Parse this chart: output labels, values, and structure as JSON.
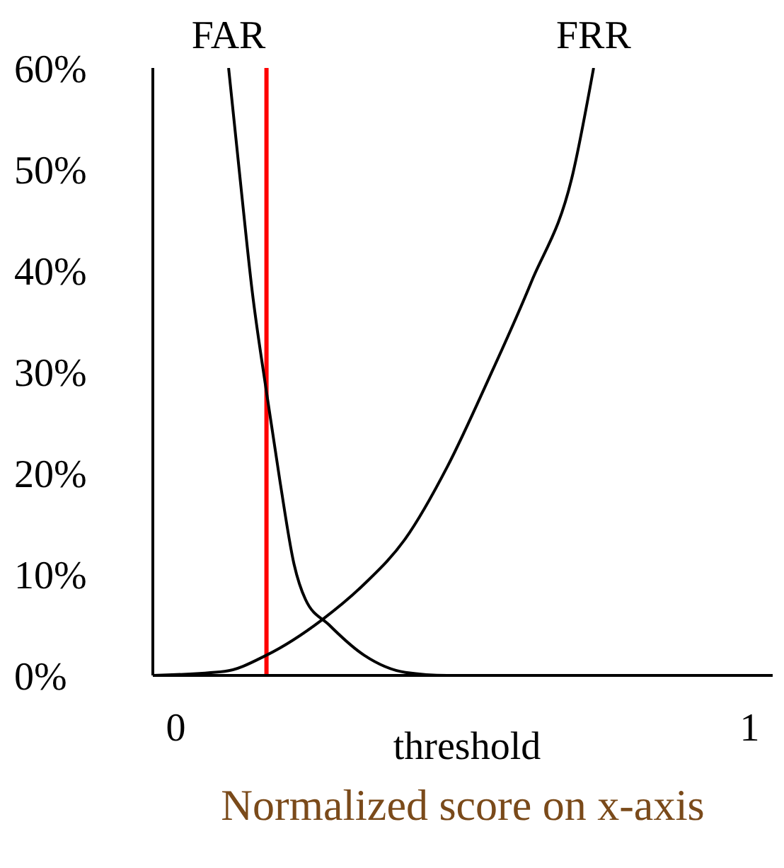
{
  "chart_data": {
    "type": "line",
    "xlabel": "Normalized score on x-axis",
    "annotations": [
      "threshold"
    ],
    "xlim": [
      -0.04,
      1.04
    ],
    "xticks": [
      0,
      1
    ],
    "ylim": [
      0,
      60
    ],
    "yticks": [
      {
        "value": 0,
        "label": "0%"
      },
      {
        "value": 10,
        "label": "10%"
      },
      {
        "value": 20,
        "label": "20%"
      },
      {
        "value": 30,
        "label": "30%"
      },
      {
        "value": 40,
        "label": "40%"
      },
      {
        "value": 50,
        "label": "50%"
      },
      {
        "value": 60,
        "label": "60%"
      }
    ],
    "series": [
      {
        "name": "FAR",
        "color": "#000000",
        "x": [
          0.092,
          0.114,
          0.133,
          0.158,
          0.182,
          0.206,
          0.226,
          0.267,
          0.328,
          0.4,
          0.473,
          1.04
        ],
        "values": [
          60,
          48,
          38,
          28,
          19,
          11,
          7.5,
          5,
          2,
          0.3,
          0,
          0
        ]
      },
      {
        "name": "FRR",
        "color": "#000000",
        "x": [
          -0.04,
          0.085,
          0.158,
          0.255,
          0.328,
          0.4,
          0.473,
          0.546,
          0.619,
          0.692,
          0.728
        ],
        "values": [
          0,
          0.4,
          2,
          5.5,
          9,
          13.5,
          20.6,
          29.4,
          38.8,
          49.6,
          60
        ]
      }
    ],
    "ref_lines": [
      {
        "axis": "x",
        "value": 0.158,
        "color": "#ff0000"
      }
    ],
    "legend": false,
    "marker": "none",
    "line_style": "solid"
  }
}
